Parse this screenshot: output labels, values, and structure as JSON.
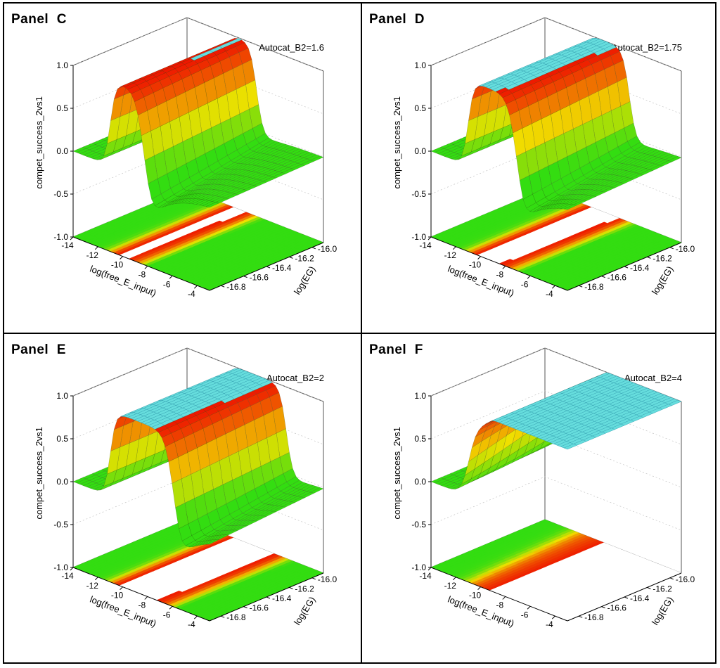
{
  "colors": {
    "low": "#33dd11",
    "mid": "#f0e000",
    "high": "#ee1100",
    "plateau": "#66dddd",
    "hole": "#ffffff"
  },
  "chart_data": [
    {
      "panel": "Panel  C",
      "type": "surface3d",
      "title": "Autocat_B2=1.6",
      "xlabel": "log(free_E_input)",
      "ylabel": "log(EG)",
      "zlabel": "compet_success_2vs1",
      "xticks": [
        -14,
        -12,
        -10,
        -8,
        -6,
        -4
      ],
      "yticks": [
        -16.8,
        -16.6,
        -16.4,
        -16.2,
        -16.0
      ],
      "zticks": [
        -1.0,
        -0.5,
        0.0,
        0.5,
        1.0
      ],
      "xlim": [
        -14,
        -3
      ],
      "ylim": [
        -16.9,
        -15.9
      ],
      "zlim": [
        -1.0,
        1.0
      ],
      "description_values": {
        "baseline": 0.0,
        "peak": 1.0,
        "ridge_start_x": -11.0,
        "ridge_end_x": -8.4,
        "trough_min": -0.45,
        "saturated_region_x": [
          -10.5,
          -9.2
        ]
      }
    },
    {
      "panel": "Panel  D",
      "type": "surface3d",
      "title": "Autocat_B2=1.75",
      "xlabel": "log(free_E_input)",
      "ylabel": "log(EG)",
      "zlabel": "compet_success_2vs1",
      "xticks": [
        -14,
        -12,
        -10,
        -8,
        -6,
        -4
      ],
      "yticks": [
        -16.8,
        -16.6,
        -16.4,
        -16.2,
        -16.0
      ],
      "zticks": [
        -1.0,
        -0.5,
        0.0,
        0.5,
        1.0
      ],
      "xlim": [
        -14,
        -3
      ],
      "ylim": [
        -16.9,
        -15.9
      ],
      "zlim": [
        -1.0,
        1.0
      ],
      "description_values": {
        "baseline": 0.0,
        "peak": 1.0,
        "ridge_start_x": -11.0,
        "ridge_end_x": -7.2,
        "trough_min": -0.42,
        "saturated_region_x": [
          -10.6,
          -7.8
        ]
      }
    },
    {
      "panel": "Panel  E",
      "type": "surface3d",
      "title": "Autocat_B2=2",
      "xlabel": "log(free_E_input)",
      "ylabel": "log(EG)",
      "zlabel": "compet_success_2vs1",
      "xticks": [
        -14,
        -12,
        -10,
        -8,
        -6,
        -4
      ],
      "yticks": [
        -16.8,
        -16.6,
        -16.4,
        -16.2,
        -16.0
      ],
      "zticks": [
        -1.0,
        -0.5,
        0.0,
        0.5,
        1.0
      ],
      "xlim": [
        -14,
        -3
      ],
      "ylim": [
        -16.9,
        -15.9
      ],
      "zlim": [
        -1.0,
        1.0
      ],
      "description_values": {
        "baseline": 0.0,
        "peak": 1.0,
        "ridge_start_x": -11.0,
        "ridge_end_x": -6.0,
        "trough_min": -0.4,
        "saturated_region_x": [
          -10.6,
          -6.6
        ]
      }
    },
    {
      "panel": "Panel  F",
      "type": "surface3d",
      "title": "Autocat_B2=4",
      "xlabel": "log(free_E_input)",
      "ylabel": "log(EG)",
      "zlabel": "compet_success_2vs1",
      "xticks": [
        -14,
        -12,
        -10,
        -8,
        -6,
        -4
      ],
      "yticks": [
        -16.8,
        -16.6,
        -16.4,
        -16.2,
        -16.0
      ],
      "zticks": [
        -1.0,
        -0.5,
        0.0,
        0.5,
        1.0
      ],
      "xlim": [
        -14,
        -3
      ],
      "ylim": [
        -16.9,
        -15.9
      ],
      "zlim": [
        -1.0,
        1.0
      ],
      "description_values": {
        "baseline": 0.0,
        "peak": 1.0,
        "ridge_start_x": -11.0,
        "ridge_end_x": -3.0,
        "trough_min": 0.0,
        "saturated_region_x": [
          -10.6,
          -3.0
        ]
      }
    }
  ]
}
